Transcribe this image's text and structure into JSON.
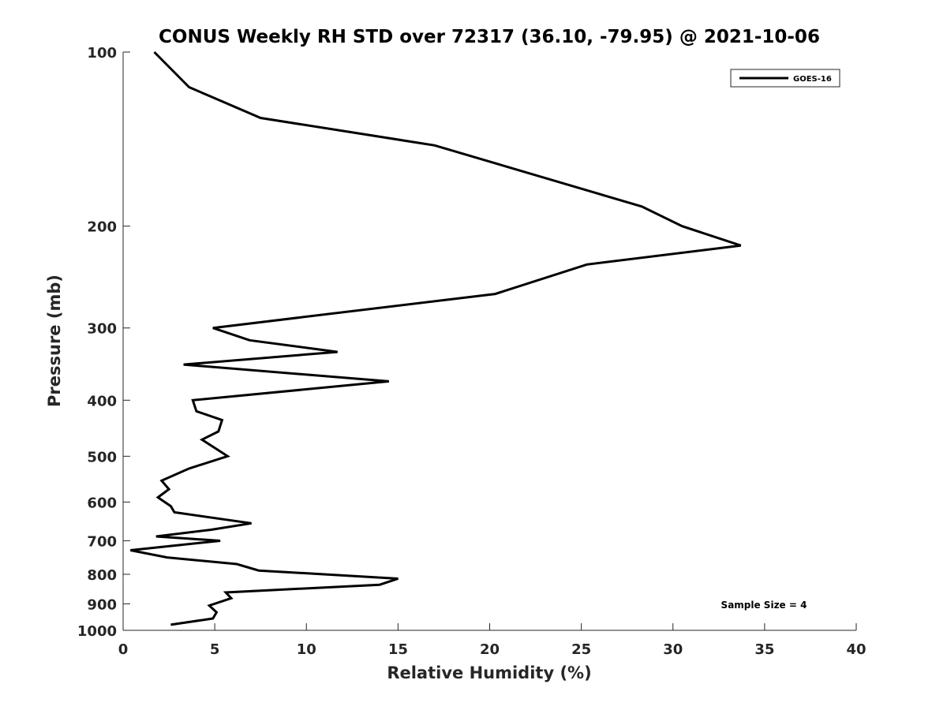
{
  "chart_data": {
    "type": "line",
    "title": "CONUS Weekly RH STD over 72317 (36.10, -79.95) @ 2021-10-06",
    "xlabel": "Relative Humidity (%)",
    "ylabel": "Pressure (mb)",
    "xlim": [
      0,
      40
    ],
    "ylim": [
      100,
      1000
    ],
    "y_scale": "log",
    "y_reversed": true,
    "x_ticks": [
      0,
      5,
      10,
      15,
      20,
      25,
      30,
      35,
      40
    ],
    "y_ticks": [
      100,
      200,
      300,
      400,
      500,
      600,
      700,
      800,
      900,
      1000
    ],
    "grid": false,
    "legend_position": "top-right",
    "series": [
      {
        "name": "GOES-16",
        "color": "#000000",
        "x": [
          1.7,
          3.6,
          7.5,
          17.0,
          28.3,
          30.5,
          33.7,
          25.3,
          20.3,
          4.9,
          6.9,
          11.7,
          3.3,
          14.5,
          3.8,
          4.0,
          5.4,
          5.2,
          4.3,
          5.7,
          3.6,
          2.1,
          2.5,
          1.9,
          2.6,
          2.8,
          7.0,
          4.8,
          1.8,
          5.3,
          0.4,
          2.4,
          6.2,
          7.4,
          15.0,
          14.0,
          5.6,
          5.9,
          4.7,
          5.1,
          4.9,
          2.6
        ],
        "y": [
          100,
          115,
          130,
          145,
          185,
          200,
          216,
          233,
          262,
          300,
          315,
          330,
          347,
          371,
          400,
          418,
          433,
          453,
          468,
          500,
          525,
          551,
          570,
          589,
          610,
          625,
          653,
          670,
          688,
          700,
          727,
          748,
          768,
          788,
          814,
          834,
          860,
          880,
          906,
          931,
          954,
          978
        ]
      }
    ],
    "annotations": [
      "Sample Size = 4"
    ]
  }
}
